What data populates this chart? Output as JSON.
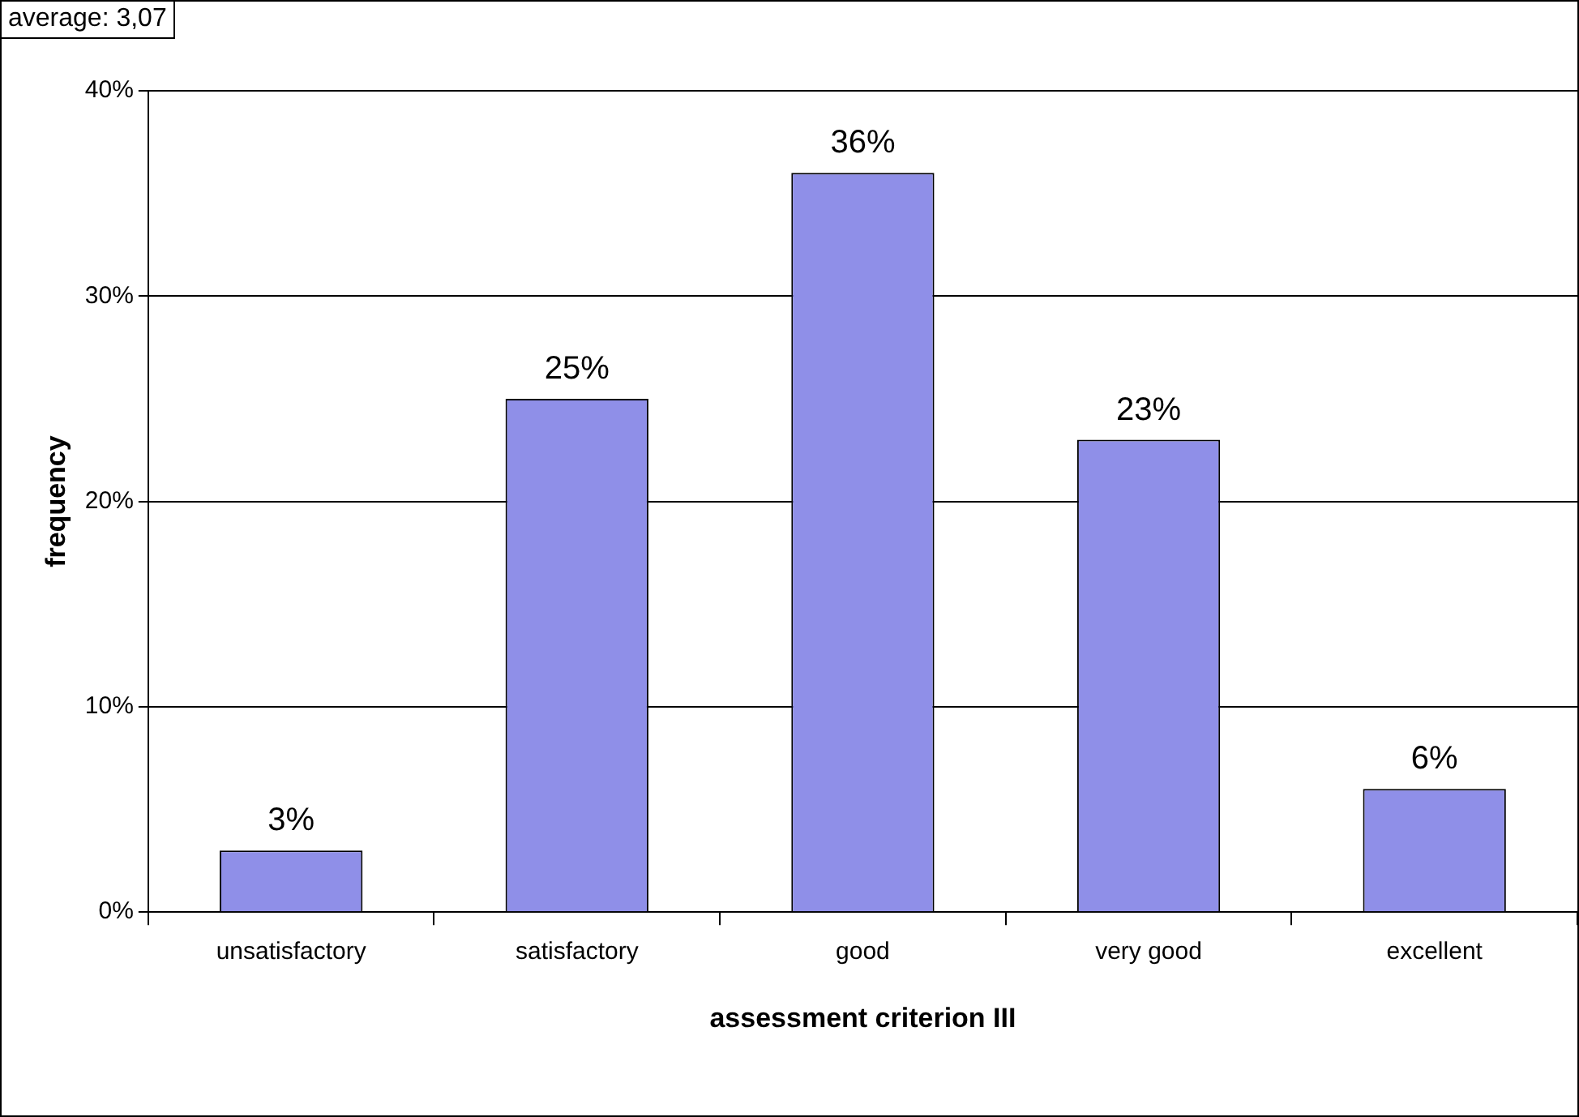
{
  "chart_data": {
    "type": "bar",
    "xlabel": "assessment criterion III",
    "ylabel": "frequency",
    "annotations": [
      "average: 3,07"
    ],
    "categories": [
      "unsatisfactory",
      "satisfactory",
      "good",
      "very good",
      "excellent"
    ],
    "values": [
      3,
      25,
      36,
      23,
      6
    ],
    "color": "#8f8fe8",
    "value_labels": [
      "3%",
      "25%",
      "36%",
      "23%",
      "6%"
    ],
    "ylim": [
      0,
      40
    ],
    "yticks": [
      {
        "value": 0,
        "label": "0%"
      },
      {
        "value": 10,
        "label": "10%"
      },
      {
        "value": 20,
        "label": "20%"
      },
      {
        "value": 30,
        "label": "30%"
      },
      {
        "value": 40,
        "label": "40%"
      }
    ],
    "grid": "y",
    "legend": false
  }
}
